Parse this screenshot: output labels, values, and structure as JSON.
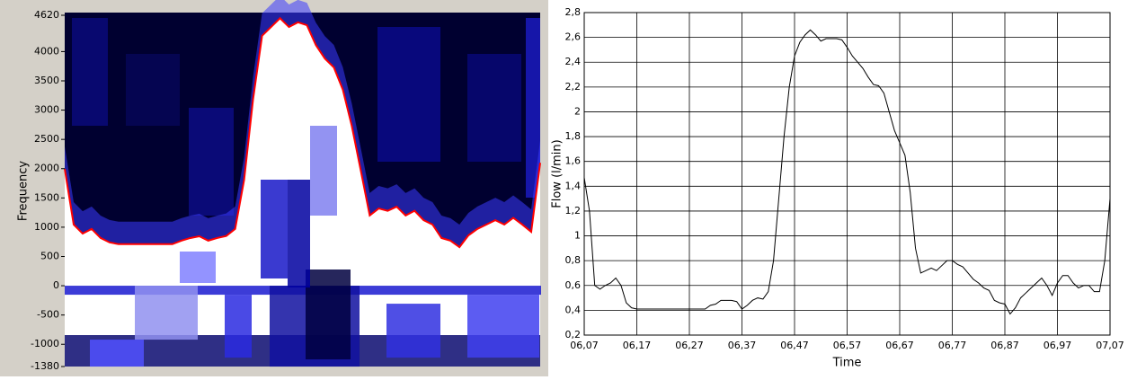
{
  "chart_data": [
    {
      "type": "spectrogram",
      "ylabel": "Frequency",
      "ylim": [
        -1380,
        4620
      ],
      "yticks": [
        4620,
        4000,
        3500,
        3000,
        2500,
        2000,
        1500,
        1000,
        500,
        0,
        -500,
        -1000,
        -1380
      ],
      "series": [
        {
          "name": "envelope",
          "color": "#ff0000",
          "values": [
            1996,
            1045,
            890,
            970,
            815,
            740,
            710,
            710,
            710,
            710,
            710,
            710,
            710,
            770,
            815,
            845,
            770,
            815,
            850,
            970,
            1810,
            3190,
            4270,
            4420,
            4570,
            4420,
            4500,
            4450,
            4110,
            3880,
            3730,
            3350,
            2730,
            1970,
            1200,
            1320,
            1280,
            1350,
            1200,
            1280,
            1120,
            1045,
            815,
            770,
            660,
            860,
            970,
            1045,
            1120,
            1045,
            1160,
            1045,
            920,
            2100
          ]
        }
      ]
    },
    {
      "type": "line",
      "xlabel": "Time",
      "ylabel": "Flow (l/min)",
      "grid": true,
      "xlim": [
        6.07,
        7.07
      ],
      "xticks": [
        {
          "value": 6.07,
          "label": "06,07"
        },
        {
          "value": 6.17,
          "label": "06,17"
        },
        {
          "value": 6.27,
          "label": "06,27"
        },
        {
          "value": 6.37,
          "label": "06,37"
        },
        {
          "value": 6.47,
          "label": "06,47"
        },
        {
          "value": 6.57,
          "label": "06,57"
        },
        {
          "value": 6.67,
          "label": "06,67"
        },
        {
          "value": 6.77,
          "label": "06,77"
        },
        {
          "value": 6.87,
          "label": "06,87"
        },
        {
          "value": 6.97,
          "label": "06,97"
        },
        {
          "value": 7.07,
          "label": "07,07"
        }
      ],
      "ylim": [
        0.2,
        2.8
      ],
      "yticks": [
        {
          "value": 0.2,
          "label": "0,2"
        },
        {
          "value": 0.4,
          "label": "0,4"
        },
        {
          "value": 0.6,
          "label": "0,6"
        },
        {
          "value": 0.8,
          "label": "0,8"
        },
        1,
        {
          "value": 1.2,
          "label": "1,2"
        },
        {
          "value": 1.4,
          "label": "1,4"
        },
        {
          "value": 1.6,
          "label": "1,6"
        },
        {
          "value": 1.8,
          "label": "1,8"
        },
        2,
        {
          "value": 2.2,
          "label": "2,2"
        },
        {
          "value": 2.4,
          "label": "2,4"
        },
        {
          "value": 2.6,
          "label": "2,6"
        },
        {
          "value": 2.8,
          "label": "2,8"
        }
      ],
      "x": [
        6.07,
        6.08,
        6.09,
        6.1,
        6.11,
        6.12,
        6.13,
        6.14,
        6.15,
        6.16,
        6.17,
        6.18,
        6.19,
        6.2,
        6.21,
        6.22,
        6.23,
        6.24,
        6.25,
        6.26,
        6.27,
        6.28,
        6.29,
        6.3,
        6.31,
        6.32,
        6.33,
        6.34,
        6.35,
        6.36,
        6.37,
        6.38,
        6.39,
        6.4,
        6.41,
        6.42,
        6.43,
        6.44,
        6.45,
        6.46,
        6.47,
        6.48,
        6.49,
        6.5,
        6.51,
        6.52,
        6.53,
        6.54,
        6.55,
        6.56,
        6.57,
        6.58,
        6.59,
        6.6,
        6.61,
        6.62,
        6.63,
        6.64,
        6.65,
        6.66,
        6.67,
        6.68,
        6.69,
        6.7,
        6.71,
        6.72,
        6.73,
        6.74,
        6.75,
        6.76,
        6.77,
        6.78,
        6.79,
        6.8,
        6.81,
        6.82,
        6.83,
        6.84,
        6.85,
        6.86,
        6.87,
        6.88,
        6.89,
        6.9,
        6.91,
        6.92,
        6.93,
        6.94,
        6.95,
        6.96,
        6.97,
        6.98,
        6.99,
        7.0,
        7.01,
        7.02,
        7.03,
        7.04,
        7.05,
        7.06,
        7.07
      ],
      "series": [
        {
          "name": "Flow",
          "color": "#000000",
          "values": [
            1.47,
            1.2,
            0.6,
            0.57,
            0.6,
            0.62,
            0.66,
            0.6,
            0.46,
            0.42,
            0.41,
            0.41,
            0.41,
            0.41,
            0.41,
            0.41,
            0.41,
            0.41,
            0.41,
            0.41,
            0.41,
            0.41,
            0.41,
            0.41,
            0.44,
            0.45,
            0.48,
            0.48,
            0.48,
            0.47,
            0.41,
            0.44,
            0.48,
            0.5,
            0.49,
            0.55,
            0.8,
            1.3,
            1.8,
            2.2,
            2.45,
            2.56,
            2.62,
            2.66,
            2.62,
            2.57,
            2.59,
            2.59,
            2.59,
            2.58,
            2.52,
            2.45,
            2.4,
            2.35,
            2.28,
            2.22,
            2.21,
            2.15,
            2.0,
            1.85,
            1.75,
            1.65,
            1.35,
            0.9,
            0.7,
            0.72,
            0.74,
            0.72,
            0.76,
            0.8,
            0.8,
            0.77,
            0.75,
            0.7,
            0.65,
            0.62,
            0.58,
            0.56,
            0.48,
            0.46,
            0.45,
            0.37,
            0.42,
            0.5,
            0.54,
            0.58,
            0.62,
            0.66,
            0.6,
            0.52,
            0.62,
            0.68,
            0.68,
            0.62,
            0.58,
            0.6,
            0.6,
            0.55,
            0.55,
            0.8,
            1.3
          ]
        }
      ]
    }
  ]
}
